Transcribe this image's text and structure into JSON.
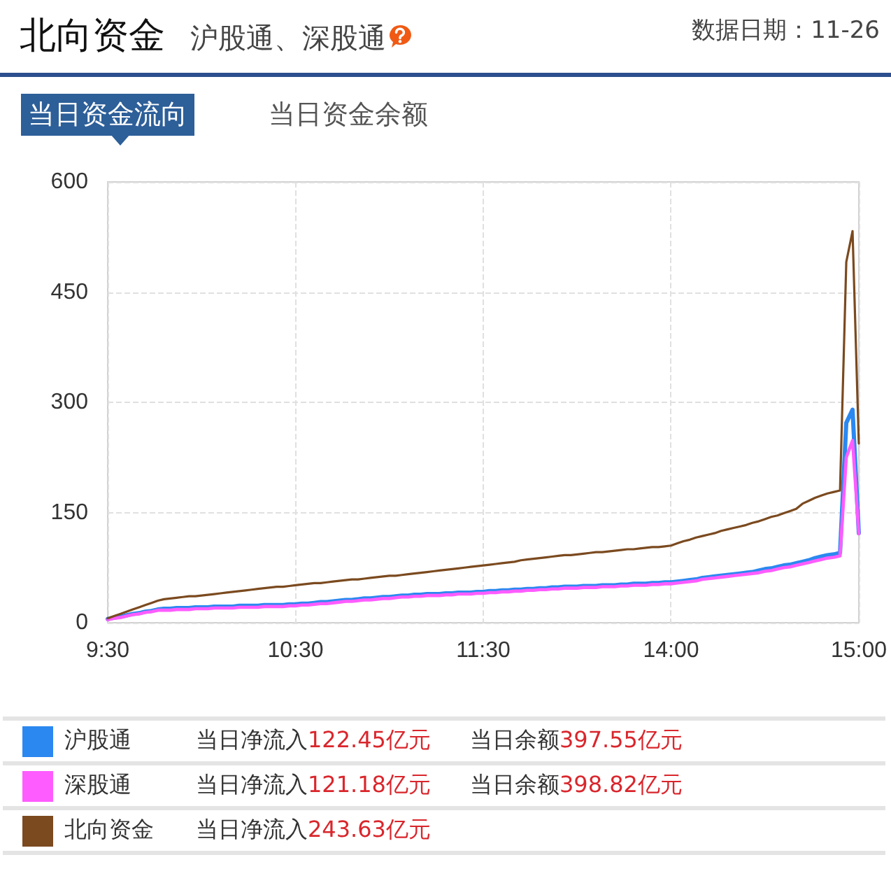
{
  "chart_data": {
    "type": "line",
    "title": "北向资金",
    "subtitle": "沪股通、深股通",
    "annotations": [
      "数据日期：11-26",
      "当日资金流向",
      "当日资金余额",
      "当日净流入122.45亿元",
      "当日余额397.55亿元",
      "当日净流入121.18亿元",
      "当日余额398.82亿元",
      "当日净流入243.63亿元"
    ],
    "categories": [
      "9:30",
      null,
      null,
      null,
      null,
      null,
      null,
      null,
      null,
      null,
      null,
      null,
      null,
      null,
      null,
      null,
      null,
      null,
      null,
      null,
      null,
      null,
      null,
      null,
      null,
      null,
      null,
      null,
      null,
      null,
      "10:30",
      null,
      null,
      null,
      null,
      null,
      null,
      null,
      null,
      null,
      null,
      null,
      null,
      null,
      null,
      null,
      null,
      null,
      null,
      null,
      null,
      null,
      null,
      null,
      null,
      null,
      null,
      null,
      null,
      null,
      "11:30",
      null,
      null,
      null,
      null,
      null,
      null,
      null,
      null,
      null,
      null,
      null,
      null,
      null,
      null,
      null,
      null,
      null,
      null,
      null,
      null,
      null,
      null,
      null,
      null,
      null,
      null,
      null,
      null,
      null,
      "14:00",
      null,
      null,
      null,
      null,
      null,
      null,
      null,
      null,
      null,
      null,
      null,
      null,
      null,
      null,
      null,
      null,
      null,
      null,
      null,
      null,
      null,
      null,
      null,
      null,
      null,
      null,
      null,
      null,
      null,
      "15:00"
    ],
    "ylim": [
      0,
      600
    ],
    "yticks": [
      0,
      150,
      300,
      450,
      600
    ],
    "grid": true,
    "legend": "bottom",
    "marker": "none",
    "line_style": "solid",
    "series": [
      {
        "name": "沪股通",
        "color": "#2b88f0",
        "values": [
          5,
          7,
          8,
          10,
          12,
          13,
          15,
          16,
          18,
          19,
          19,
          20,
          20,
          20,
          21,
          21,
          21,
          22,
          22,
          22,
          22,
          23,
          23,
          23,
          23,
          24,
          24,
          24,
          24,
          25,
          25,
          26,
          26,
          27,
          28,
          28,
          29,
          30,
          31,
          31,
          32,
          33,
          33,
          34,
          35,
          35,
          36,
          37,
          37,
          38,
          38,
          39,
          39,
          39,
          40,
          40,
          41,
          41,
          41,
          42,
          42,
          43,
          43,
          44,
          44,
          45,
          45,
          46,
          46,
          47,
          47,
          48,
          48,
          49,
          49,
          49,
          50,
          50,
          50,
          51,
          51,
          51,
          52,
          52,
          53,
          53,
          53,
          54,
          54,
          55,
          55,
          56,
          57,
          58,
          59,
          61,
          62,
          63,
          64,
          65,
          66,
          67,
          68,
          69,
          71,
          73,
          74,
          76,
          78,
          79,
          81,
          83,
          85,
          88,
          90,
          92,
          93,
          95,
          272,
          290,
          122
        ]
      },
      {
        "name": "深股通",
        "color": "#ff5cff",
        "values": [
          4,
          6,
          7,
          9,
          11,
          12,
          14,
          15,
          17,
          17,
          17,
          18,
          18,
          18,
          19,
          19,
          19,
          20,
          20,
          20,
          20,
          21,
          21,
          21,
          21,
          22,
          22,
          22,
          22,
          23,
          23,
          24,
          24,
          25,
          26,
          26,
          27,
          28,
          29,
          29,
          30,
          31,
          31,
          32,
          33,
          33,
          34,
          35,
          35,
          36,
          36,
          37,
          37,
          37,
          38,
          38,
          39,
          39,
          39,
          40,
          40,
          41,
          41,
          42,
          42,
          43,
          43,
          44,
          44,
          45,
          45,
          46,
          46,
          47,
          47,
          47,
          48,
          48,
          48,
          49,
          49,
          49,
          50,
          50,
          51,
          51,
          51,
          52,
          52,
          53,
          53,
          54,
          55,
          56,
          57,
          59,
          60,
          61,
          62,
          63,
          64,
          65,
          66,
          67,
          68,
          70,
          71,
          73,
          75,
          76,
          78,
          80,
          82,
          84,
          86,
          88,
          89,
          91,
          225,
          248,
          121
        ]
      },
      {
        "name": "北向资金",
        "color": "#7b4a1f",
        "values": [
          6,
          9,
          12,
          15,
          18,
          21,
          24,
          27,
          30,
          32,
          33,
          34,
          35,
          36,
          36,
          37,
          38,
          39,
          40,
          41,
          42,
          43,
          44,
          45,
          46,
          47,
          48,
          49,
          49,
          50,
          51,
          52,
          53,
          54,
          54,
          55,
          56,
          57,
          58,
          59,
          59,
          60,
          61,
          62,
          63,
          64,
          64,
          65,
          66,
          67,
          68,
          69,
          70,
          71,
          72,
          73,
          74,
          75,
          76,
          77,
          78,
          79,
          80,
          81,
          82,
          83,
          85,
          86,
          87,
          88,
          89,
          90,
          91,
          92,
          92,
          93,
          94,
          95,
          96,
          96,
          97,
          98,
          99,
          100,
          100,
          101,
          102,
          103,
          103,
          104,
          105,
          108,
          111,
          113,
          116,
          118,
          120,
          122,
          125,
          127,
          129,
          131,
          133,
          136,
          138,
          141,
          144,
          146,
          149,
          152,
          155,
          162,
          166,
          170,
          173,
          176,
          178,
          180,
          491,
          533,
          244
        ]
      }
    ]
  }
}
